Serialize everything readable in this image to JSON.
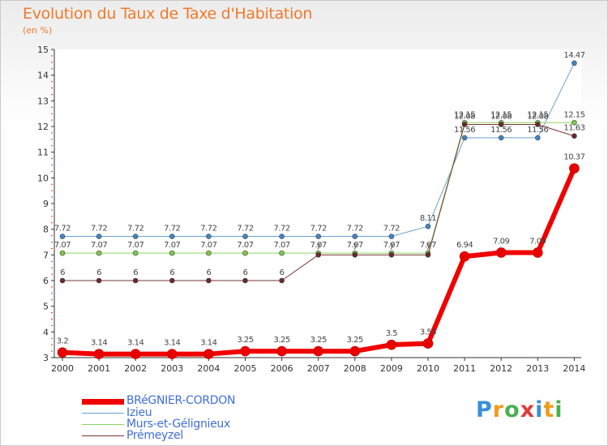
{
  "title": "Evolution du Taux de Taxe d'Habitation",
  "unit": "(en %)",
  "logo": {
    "letters": [
      "P",
      "r",
      "o",
      "x",
      "i",
      "t",
      "i"
    ],
    "colors": [
      "#3a8fd8",
      "#f29a1c",
      "#4cb050",
      "#e23b3b",
      "#3a8fd8",
      "#f29a1c",
      "#4cb050"
    ]
  },
  "chart_data": {
    "type": "line",
    "title": "Evolution du Taux de Taxe d'Habitation",
    "ylabel": "(en %)",
    "xlabel": "",
    "ylim": [
      3,
      15
    ],
    "yticks": [
      "3",
      "4",
      "5",
      "6",
      "7",
      "8",
      "9",
      "10",
      "11",
      "12",
      "13",
      "14",
      "15"
    ],
    "categories": [
      "2000",
      "2001",
      "2002",
      "2003",
      "2004",
      "2005",
      "2006",
      "2007",
      "2008",
      "2009",
      "2010",
      "2011",
      "2012",
      "2013",
      "2014"
    ],
    "series": [
      {
        "name": "Izieu",
        "color": "#6aa2cd",
        "marker": "#3f86c3",
        "width": 1,
        "values": [
          7.72,
          7.72,
          7.72,
          7.72,
          7.72,
          7.72,
          7.72,
          7.72,
          7.72,
          7.72,
          8.11,
          11.56,
          11.56,
          11.56,
          14.47
        ],
        "labels": [
          "7.72",
          "7.72",
          "7.72",
          "7.72",
          "7.72",
          "7.72",
          "7.72",
          "7.72",
          "7.72",
          "7.72",
          "8.11",
          "11.56",
          "11.56",
          "11.56",
          "14.47"
        ]
      },
      {
        "name": "Murs-et-Gélignieux",
        "color": "#8fd462",
        "marker": "#7cc84a",
        "width": 1,
        "values": [
          7.07,
          7.07,
          7.07,
          7.07,
          7.07,
          7.07,
          7.07,
          7.07,
          7.07,
          7.07,
          7.07,
          12.15,
          12.15,
          12.15,
          12.15
        ],
        "labels": [
          "7.07",
          "7.07",
          "7.07",
          "7.07",
          "7.07",
          "7.07",
          "7.07",
          "7.07",
          "7.07",
          "7.07",
          "7.07",
          "12.15",
          "12.15",
          "12.15",
          "12.15"
        ]
      },
      {
        "name": "Prémeyzel",
        "color": "#7a3636",
        "marker": "#6a2a2a",
        "width": 1,
        "values": [
          6,
          6,
          6,
          6,
          6,
          6,
          6,
          7,
          7,
          7,
          7,
          12.08,
          12.08,
          12.08,
          11.63
        ],
        "labels": [
          "6",
          "6",
          "6",
          "6",
          "6",
          "6",
          "6",
          "7",
          "7",
          "7",
          "7",
          "12.08",
          "12.08",
          "12.08",
          "11.63"
        ]
      },
      {
        "name": "BRéGNIER-CORDON",
        "color": "#f10000",
        "marker": "#e80000",
        "width": 6,
        "values": [
          3.2,
          3.14,
          3.14,
          3.14,
          3.14,
          3.25,
          3.25,
          3.25,
          3.25,
          3.5,
          3.55,
          6.94,
          7.09,
          7.09,
          10.37
        ],
        "labels": [
          "3.2",
          "3.14",
          "3.14",
          "3.14",
          "3.14",
          "3.25",
          "3.25",
          "3.25",
          "3.25",
          "3.5",
          "3.55",
          "6.94",
          "7.09",
          "7.09",
          "10.37"
        ]
      }
    ],
    "legend": [
      "BRéGNIER-CORDON",
      "Izieu",
      "Murs-et-Gélignieux",
      "Prémeyzel"
    ]
  }
}
